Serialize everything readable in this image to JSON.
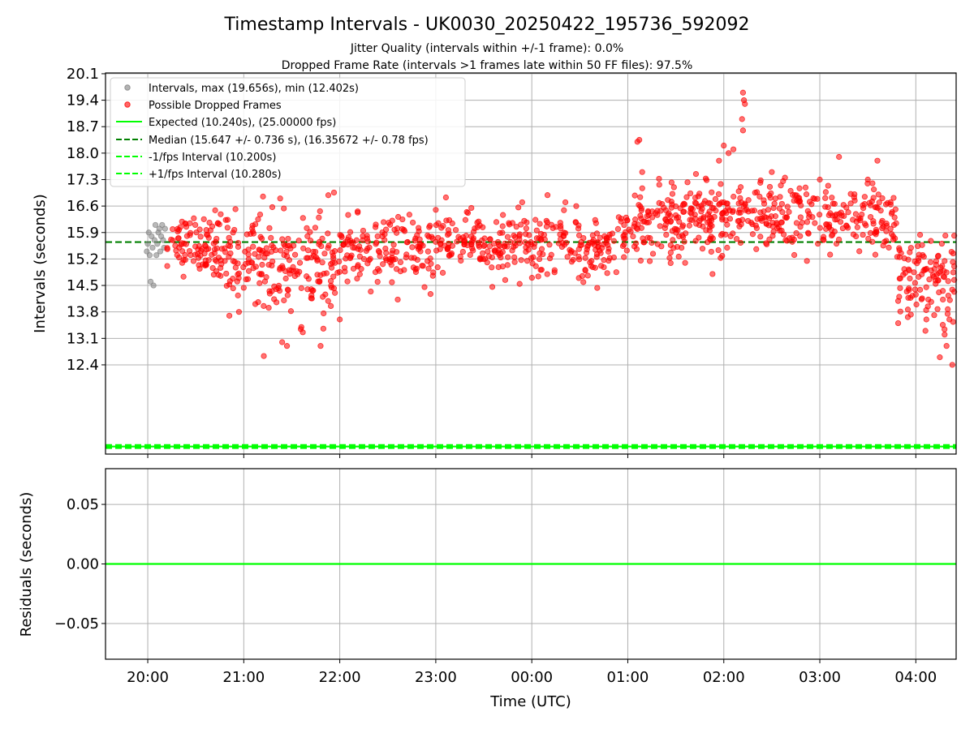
{
  "chart_data": [
    {
      "type": "scatter",
      "panel": "intervals",
      "title": "Timestamp Intervals - UK0030_20250422_195736_592092",
      "subtitle_lines": [
        "Jitter Quality (intervals within +/-1 frame): 0.0%",
        "Dropped Frame Rate (intervals >1 frames late within 50 FF files): 97.5%"
      ],
      "xlabel": "",
      "ylabel": "Intervals (seconds)",
      "x_ticks": [
        "20:00",
        "21:00",
        "22:00",
        "23:00",
        "00:00",
        "01:00",
        "02:00",
        "03:00",
        "04:00"
      ],
      "x_tick_hours": [
        0,
        1,
        2,
        3,
        4,
        5,
        6,
        7,
        8
      ],
      "xlim_hours_from_20_00": [
        -0.44,
        8.42
      ],
      "y_ticks": [
        "12.4",
        "13.1",
        "13.8",
        "14.5",
        "15.2",
        "15.9",
        "16.6",
        "17.3",
        "18.0",
        "18.7",
        "19.4",
        "20.1"
      ],
      "ylim": [
        10.04,
        20.12
      ],
      "grid": true,
      "legend_position": "top-left",
      "legend": [
        {
          "label": "Intervals, max (19.656s), min (12.402s)",
          "kind": "marker",
          "color": "#808080"
        },
        {
          "label": "Possible Dropped Frames",
          "kind": "marker",
          "color": "#ff0000"
        },
        {
          "label": "Expected (10.240s), (25.00000 fps)",
          "kind": "line-solid",
          "color": "#00ff00"
        },
        {
          "label": "Median (15.647 +/- 0.736 s), (16.35672 +/- 0.78 fps)",
          "kind": "line-dashed",
          "color": "#008000"
        },
        {
          "label": "-1/fps Interval (10.200s)",
          "kind": "line-dashed",
          "color": "#00ff00"
        },
        {
          "label": "+1/fps Interval (10.280s)",
          "kind": "line-dashed",
          "color": "#00ff00"
        }
      ],
      "reference_lines": {
        "expected": 10.24,
        "median": 15.647,
        "minus_one_frame": 10.2,
        "plus_one_frame": 10.28
      },
      "series": [
        {
          "name": "Intervals, max (19.656s), min (12.402s)",
          "color": "#808080",
          "points": [
            [
              -0.01,
              15.4
            ],
            [
              0.0,
              15.6
            ],
            [
              0.01,
              15.9
            ],
            [
              0.02,
              15.3
            ],
            [
              0.03,
              14.6
            ],
            [
              0.04,
              15.8
            ],
            [
              0.05,
              15.5
            ],
            [
              0.06,
              14.5
            ],
            [
              0.07,
              15.7
            ],
            [
              0.08,
              16.1
            ],
            [
              0.09,
              15.3
            ],
            [
              0.1,
              15.6
            ],
            [
              0.11,
              15.9
            ],
            [
              0.12,
              16.0
            ],
            [
              0.13,
              15.4
            ],
            [
              0.14,
              15.8
            ],
            [
              0.15,
              16.1
            ],
            [
              0.16,
              15.7
            ],
            [
              0.17,
              15.5
            ],
            [
              0.18,
              16.0
            ]
          ]
        },
        {
          "name": "Possible Dropped Frames",
          "color": "#ff0000",
          "segments": [
            {
              "hours": [
                0.2,
                0.7
              ],
              "center": 15.6,
              "spread": 0.45,
              "count": 80
            },
            {
              "hours": [
                0.7,
                1.2
              ],
              "center": 15.3,
              "spread": 0.7,
              "count": 90
            },
            {
              "hours": [
                1.2,
                2.0
              ],
              "center": 15.0,
              "spread": 0.85,
              "count": 140
            },
            {
              "hours": [
                2.0,
                3.0
              ],
              "center": 15.4,
              "spread": 0.55,
              "count": 150
            },
            {
              "hours": [
                3.0,
                4.0
              ],
              "center": 15.6,
              "spread": 0.5,
              "count": 150
            },
            {
              "hours": [
                4.0,
                4.9
              ],
              "center": 15.5,
              "spread": 0.55,
              "count": 130
            },
            {
              "hours": [
                4.9,
                5.6
              ],
              "center": 16.1,
              "spread": 0.6,
              "count": 120
            },
            {
              "hours": [
                5.6,
                6.0
              ],
              "center": 16.4,
              "spread": 0.7,
              "count": 80
            },
            {
              "hours": [
                6.0,
                7.0
              ],
              "center": 16.3,
              "spread": 0.55,
              "count": 150
            },
            {
              "hours": [
                7.0,
                7.8
              ],
              "center": 16.2,
              "spread": 0.55,
              "count": 120
            },
            {
              "hours": [
                7.8,
                8.42
              ],
              "center": 14.7,
              "spread": 0.65,
              "count": 110
            }
          ],
          "points": [
            [
              1.4,
              13.0
            ],
            [
              1.45,
              12.9
            ],
            [
              1.8,
              12.9
            ],
            [
              1.6,
              13.4
            ],
            [
              2.0,
              13.6
            ],
            [
              0.85,
              13.7
            ],
            [
              0.95,
              13.8
            ],
            [
              5.1,
              18.3
            ],
            [
              5.12,
              18.35
            ],
            [
              5.15,
              17.5
            ],
            [
              6.0,
              18.2
            ],
            [
              6.05,
              18.0
            ],
            [
              6.1,
              18.1
            ],
            [
              5.95,
              17.8
            ],
            [
              6.2,
              19.6
            ],
            [
              6.21,
              19.4
            ],
            [
              6.22,
              19.3
            ],
            [
              6.19,
              18.9
            ],
            [
              6.2,
              18.6
            ],
            [
              7.2,
              17.9
            ],
            [
              7.0,
              17.3
            ],
            [
              7.6,
              17.8
            ],
            [
              7.5,
              17.3
            ],
            [
              6.5,
              17.5
            ],
            [
              8.1,
              13.3
            ],
            [
              8.25,
              12.6
            ],
            [
              8.38,
              12.4
            ],
            [
              8.32,
              12.9
            ],
            [
              8.3,
              13.2
            ],
            [
              8.35,
              13.6
            ],
            [
              3.9,
              16.7
            ],
            [
              3.0,
              16.5
            ],
            [
              4.35,
              16.7
            ]
          ]
        }
      ]
    },
    {
      "type": "line",
      "panel": "residuals",
      "xlabel": "Time (UTC)",
      "ylabel": "Residuals (seconds)",
      "y_ticks": [
        "0.05",
        "0.00",
        "−0.05"
      ],
      "y_tick_values": [
        0.05,
        0.0,
        -0.05
      ],
      "ylim": [
        -0.08,
        0.08
      ],
      "grid": true,
      "series": [
        {
          "color": "#00ff00",
          "x_hours": [
            -0.44,
            8.42
          ],
          "values": [
            0.0,
            0.0
          ]
        }
      ]
    }
  ]
}
